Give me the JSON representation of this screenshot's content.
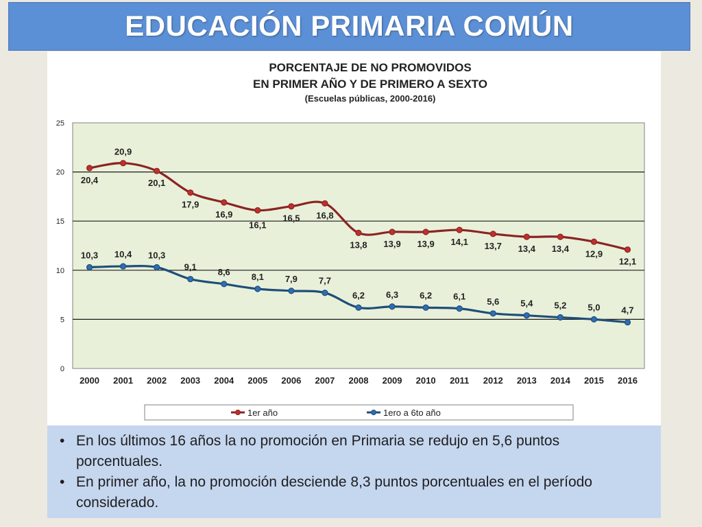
{
  "slide_title": "EDUCACIÓN PRIMARIA COMÚN",
  "chart_data": {
    "type": "line",
    "title_lines": [
      "PORCENTAJE DE NO PROMOVIDOS",
      "EN PRIMER AÑO Y DE PRIMERO A SEXTO",
      "(Escuelas públicas, 2000-2016)"
    ],
    "categories": [
      "2000",
      "2001",
      "2002",
      "2003",
      "2004",
      "2005",
      "2006",
      "2007",
      "2008",
      "2009",
      "2010",
      "2011",
      "2012",
      "2013",
      "2014",
      "2015",
      "2016"
    ],
    "yticks": [
      "0",
      "5",
      "10",
      "15",
      "20",
      "25"
    ],
    "ylim": [
      0,
      25
    ],
    "grid": true,
    "legend_position": "bottom",
    "series": [
      {
        "name": "1er año",
        "color": "#8b2424",
        "values": [
          20.4,
          20.9,
          20.1,
          17.9,
          16.9,
          16.1,
          16.5,
          16.8,
          13.8,
          13.9,
          13.9,
          14.1,
          13.7,
          13.4,
          13.4,
          12.9,
          12.1
        ],
        "labels": [
          "20,4",
          "20,9",
          "20,1",
          "17,9",
          "16,9",
          "16,1",
          "16,5",
          "16,8",
          "13,8",
          "13,9",
          "13,9",
          "14,1",
          "13,7",
          "13,4",
          "13,4",
          "12,9",
          "12,1"
        ]
      },
      {
        "name": "1ero a 6to año",
        "color": "#1f4e79",
        "values": [
          10.3,
          10.4,
          10.3,
          9.1,
          8.6,
          8.1,
          7.9,
          7.7,
          6.2,
          6.3,
          6.2,
          6.1,
          5.6,
          5.4,
          5.2,
          5.0,
          4.7
        ],
        "labels": [
          "10,3",
          "10,4",
          "10,3",
          "9,1",
          "8,6",
          "8,1",
          "7,9",
          "7,7",
          "6,2",
          "6,3",
          "6,2",
          "6,1",
          "5,6",
          "5,4",
          "5,2",
          "5,0",
          "4,7"
        ]
      }
    ]
  },
  "bullets": [
    "En los últimos 16 años la no promoción en Primaria se redujo en 5,6 puntos porcentuales.",
    "En primer año, la no promoción desciende 8,3  puntos porcentuales en el período considerado."
  ],
  "bullet_symbol": "•",
  "colors": {
    "title_bar": "#5b8fd6",
    "plot_background": "#e9f0d9",
    "bullet_box": "#c5d6ef"
  }
}
